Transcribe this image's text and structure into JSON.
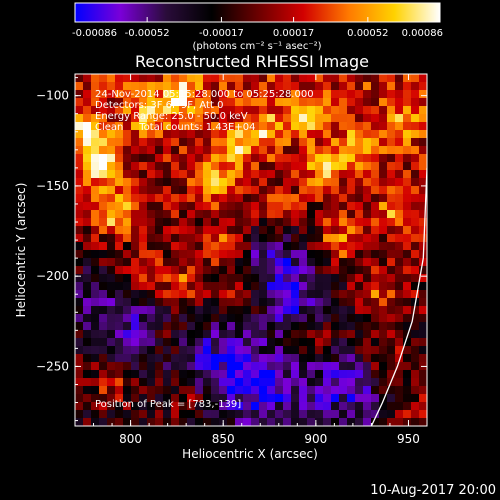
{
  "chart_data": {
    "type": "heatmap",
    "title": "Reconstructed RHESSI Image",
    "xlabel": "Heliocentric X (arcsec)",
    "ylabel": "Heliocentric Y (arcsec)",
    "xlim": [
      770,
      960
    ],
    "ylim": [
      -283,
      -88
    ],
    "x_ticks": [
      800,
      850,
      900,
      950
    ],
    "y_ticks": [
      -100,
      -150,
      -200,
      -250
    ],
    "colorbar": {
      "min": -0.00086,
      "max": 0.00086,
      "tick_values": [
        -0.00086,
        -0.00052,
        -0.00017,
        0.00017,
        0.00052,
        0.00086
      ],
      "tick_labels": [
        "-0.00086",
        "-0.00052",
        "-0.00017",
        "0.00017",
        "0.00052",
        "0.00086"
      ],
      "unit_label": "(photons cm⁻² s⁻¹ asec⁻²)",
      "colormap": [
        "#0000ff",
        "#7a00d8",
        "#2a0c3a",
        "#000000",
        "#6a0000",
        "#d20000",
        "#ff7a00",
        "#ffd200",
        "#ffffff"
      ]
    },
    "annotations": {
      "time_range": "24-Nov-2014 05:15:28.000 to 05:25:28.000",
      "detectors": "Detectors: 3F 6F 9F, Att 0",
      "energy_range": "Energy Range: 25.0 - 50.0 keV",
      "clean": "Clean     Total counts: 1.43E+04",
      "peak": "Position of Peak = [783,-139]"
    },
    "peak": [
      783,
      -139
    ],
    "limb_arc": [
      [
        930,
        -283
      ],
      [
        936,
        -270
      ],
      [
        944,
        -250
      ],
      [
        952,
        -225
      ],
      [
        958,
        -190
      ],
      [
        960,
        -140
      ]
    ],
    "hot_spots": [
      {
        "x": 783,
        "y": -139,
        "amp": 1.0
      },
      {
        "x": 776,
        "y": -120,
        "amp": 0.8
      },
      {
        "x": 792,
        "y": -165,
        "amp": 0.85
      },
      {
        "x": 810,
        "y": -110,
        "amp": 0.6
      },
      {
        "x": 828,
        "y": -100,
        "amp": 0.7
      },
      {
        "x": 845,
        "y": -148,
        "amp": 0.75
      },
      {
        "x": 858,
        "y": -128,
        "amp": 0.65
      },
      {
        "x": 872,
        "y": -118,
        "amp": 0.55
      },
      {
        "x": 895,
        "y": -112,
        "amp": 0.7
      },
      {
        "x": 905,
        "y": -140,
        "amp": 0.6
      },
      {
        "x": 925,
        "y": -128,
        "amp": 0.7
      },
      {
        "x": 942,
        "y": -165,
        "amp": 0.55
      },
      {
        "x": 948,
        "y": -115,
        "amp": 0.5
      },
      {
        "x": 852,
        "y": -185,
        "amp": 0.7
      },
      {
        "x": 858,
        "y": -210,
        "amp": 0.6
      },
      {
        "x": 826,
        "y": -205,
        "amp": 0.55
      },
      {
        "x": 805,
        "y": -200,
        "amp": 0.5
      },
      {
        "x": 880,
        "y": -165,
        "amp": 0.45
      },
      {
        "x": 912,
        "y": -180,
        "amp": 0.55
      },
      {
        "x": 935,
        "y": -210,
        "amp": 0.5
      },
      {
        "x": 900,
        "y": -235,
        "amp": 0.45
      },
      {
        "x": 940,
        "y": -250,
        "amp": 0.4
      },
      {
        "x": 820,
        "y": -235,
        "amp": 0.4
      },
      {
        "x": 790,
        "y": -260,
        "amp": 0.45
      },
      {
        "x": 830,
        "y": -268,
        "amp": 0.35
      },
      {
        "x": 955,
        "y": -275,
        "amp": 0.4
      }
    ],
    "cold_spots": [
      {
        "x": 875,
        "y": -190,
        "amp": 0.8
      },
      {
        "x": 890,
        "y": -215,
        "amp": 0.7
      },
      {
        "x": 845,
        "y": -245,
        "amp": 0.7
      },
      {
        "x": 805,
        "y": -228,
        "amp": 0.6
      },
      {
        "x": 870,
        "y": -262,
        "amp": 0.8
      },
      {
        "x": 915,
        "y": -262,
        "amp": 0.7
      },
      {
        "x": 780,
        "y": -210,
        "amp": 0.45
      }
    ]
  },
  "footer": {
    "date": "10-Aug-2017 20:00"
  }
}
